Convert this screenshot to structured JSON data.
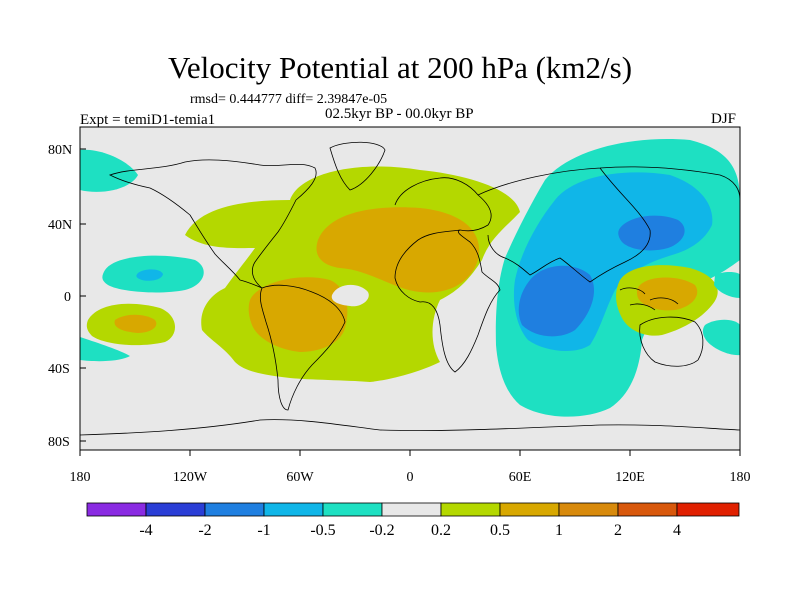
{
  "title": "Velocity Potential at 200 hPa (km2/s)",
  "stats": "rmsd= 0.444777 diff= 2.39847e-05",
  "experiment": "Expt = temiD1-temia1",
  "period": "02.5kyr BP - 00.0kyr BP",
  "season": "DJF",
  "map": {
    "lat_labels": [
      "80N",
      "40N",
      "0",
      "40S",
      "80S"
    ],
    "lon_labels": [
      "180",
      "120W",
      "60W",
      "0",
      "60E",
      "120E",
      "180"
    ]
  },
  "colorbar": {
    "colors": [
      "#8a2be2",
      "#2a3ed6",
      "#1f7fe0",
      "#10b6e8",
      "#1ee0c2",
      "#e8e8e8",
      "#b4d800",
      "#d8a800",
      "#d88a0c",
      "#d8580c",
      "#e02000"
    ],
    "labels": [
      "-4",
      "-2",
      "-1",
      "-0.5",
      "-0.2",
      "0.2",
      "0.5",
      "1",
      "2",
      "4"
    ]
  },
  "palette": {
    "neutral": "#e8e8e8",
    "pos1": "#b4d800",
    "pos2": "#d8a800",
    "neg1": "#1ee0c2",
    "neg2": "#10b6e8",
    "neg3": "#1f7fe0",
    "coast": "#000000"
  }
}
